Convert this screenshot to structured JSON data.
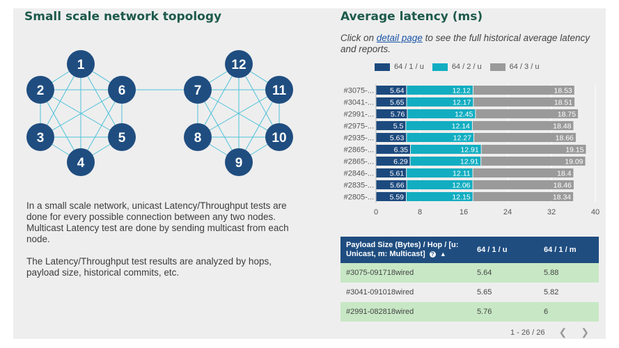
{
  "left_panel": {
    "title": "Small scale network topology",
    "nodes": [
      "1",
      "2",
      "6",
      "5",
      "4",
      "3",
      "12",
      "11",
      "10",
      "9",
      "8",
      "7"
    ],
    "description": [
      "In a small scale network, unicast Latency/Throughput tests are done for every possible connection between any two nodes. Multicast Latency test are done by sending multicast from each node.",
      "The Latency/Throughput test results are analyzed by hops, payload size, historical commits, etc."
    ]
  },
  "right_panel": {
    "title": "Average latency (ms)",
    "intro_prefix": "Click on ",
    "intro_link": "detail page",
    "intro_suffix": " to see the full historical average latency and reports."
  },
  "colors": {
    "series1": "#1c4a7e",
    "series2": "#12adc1",
    "series3": "#9a9a9a",
    "title": "#1d5a4b",
    "node": "#1f4d80",
    "edge": "#4ec2d9"
  },
  "chart_data": {
    "type": "bar",
    "orientation": "horizontal",
    "stacked": true,
    "categories": [
      "#3075-...",
      "#3041-...",
      "#2991-...",
      "#2975-...",
      "#2935-...",
      "#2865-...",
      "#2865-...",
      "#2846-...",
      "#2835-...",
      "#2805-..."
    ],
    "series": [
      {
        "name": "64 / 1 / u",
        "values": [
          5.64,
          5.65,
          5.76,
          5.5,
          5.63,
          6.35,
          6.29,
          5.61,
          5.66,
          5.59
        ]
      },
      {
        "name": "64 / 2 / u",
        "values": [
          12.12,
          12.17,
          12.45,
          12.14,
          12.27,
          12.91,
          12.91,
          12.11,
          12.06,
          12.15
        ]
      },
      {
        "name": "64 / 3 / u",
        "values": [
          18.53,
          18.51,
          18.75,
          18.48,
          18.66,
          19.15,
          19.09,
          18.4,
          18.46,
          18.34
        ]
      }
    ],
    "xlim": [
      0,
      40
    ],
    "xticks": [
      "0",
      "8",
      "16",
      "24",
      "32",
      "40"
    ],
    "legend_position": "top"
  },
  "table": {
    "headers": [
      "Payload Size (Bytes) / Hop / [u: Unicast, m: Multicast]",
      "64 / 1 / u",
      "64 / 1 / m"
    ],
    "rows": [
      [
        "#3075-091718wired",
        "5.64",
        "5.88"
      ],
      [
        "#3041-091018wired",
        "5.65",
        "5.82"
      ],
      [
        "#2991-082818wired",
        "5.76",
        "6"
      ]
    ],
    "pagination": "1 - 26 / 26"
  }
}
